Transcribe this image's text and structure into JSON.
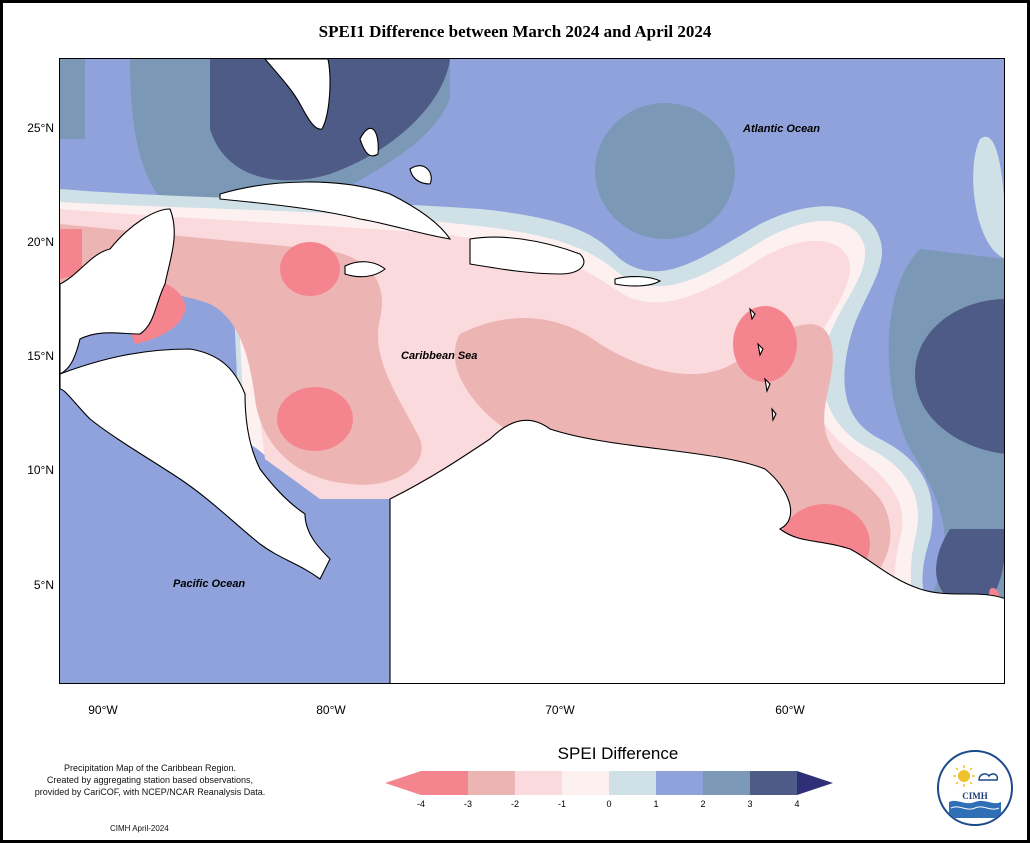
{
  "title": "SPEI1 Difference between March 2024 and April 2024",
  "map": {
    "lat_ticks": [
      "25°N",
      "20°N",
      "15°N",
      "10°N",
      "5°N"
    ],
    "lon_ticks": [
      "90°W",
      "80°W",
      "70°W",
      "60°W"
    ],
    "labels": {
      "atlantic": "Atlantic Ocean",
      "caribbean": "Caribbean Sea",
      "pacific": "Pacific Ocean"
    }
  },
  "legend": {
    "title": "SPEI Difference",
    "ticks": [
      "-4",
      "-3",
      "-2",
      "-1",
      "0",
      "1",
      "2",
      "3",
      "4"
    ],
    "colors": [
      "#f4858f",
      "#edb4b4",
      "#fbdadd",
      "#fdf0f0",
      "#cfe0e6",
      "#8fa2dc",
      "#7b98b6",
      "#4e5b86"
    ]
  },
  "credit": {
    "line1": "Precipitation Map of the Caribbean Region.",
    "line2": "Created by aggregating station based observations,",
    "line3": "provided by CariCOF, with NCEP/NCAR Reanalysis Data.",
    "date": "CIMH April-2024"
  },
  "logo": {
    "text": "CIMH"
  }
}
